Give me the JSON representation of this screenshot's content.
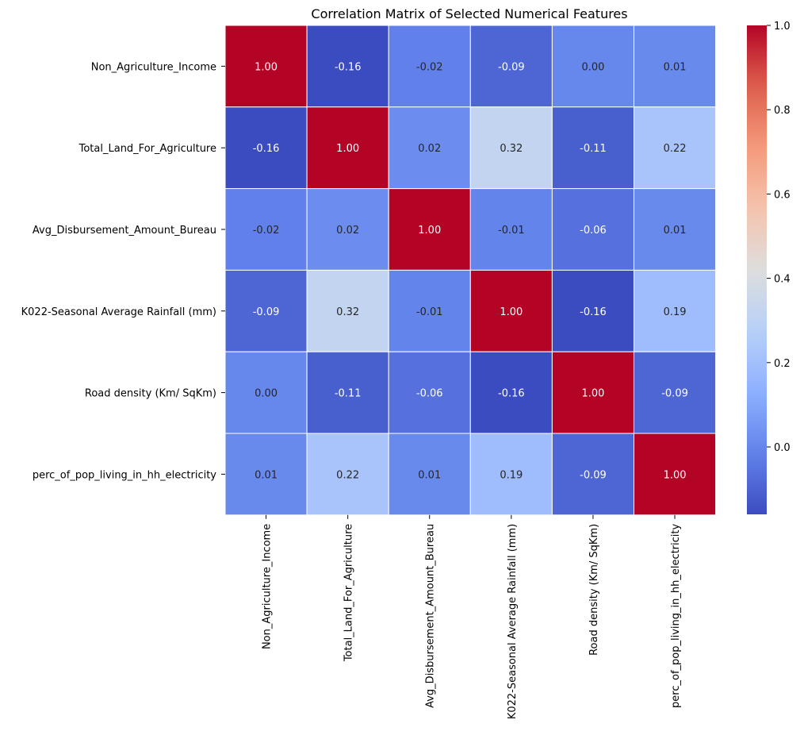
{
  "chart_data": {
    "type": "heatmap",
    "title": "Correlation Matrix of Selected Numerical Features",
    "labels": [
      "Non_Agriculture_Income",
      "Total_Land_For_Agriculture",
      "Avg_Disbursement_Amount_Bureau",
      "K022-Seasonal Average Rainfall (mm)",
      "Road density (Km/ SqKm)",
      "perc_of_pop_living_in_hh_electricity"
    ],
    "values": [
      [
        1.0,
        -0.16,
        -0.02,
        -0.09,
        0.0,
        0.01
      ],
      [
        -0.16,
        1.0,
        0.02,
        0.32,
        -0.11,
        0.22
      ],
      [
        -0.02,
        0.02,
        1.0,
        -0.01,
        -0.06,
        0.01
      ],
      [
        -0.09,
        0.32,
        -0.01,
        1.0,
        -0.16,
        0.19
      ],
      [
        0.0,
        -0.11,
        -0.06,
        -0.16,
        1.0,
        -0.09
      ],
      [
        0.01,
        0.22,
        0.01,
        0.19,
        -0.09,
        1.0
      ]
    ],
    "colormap": "coolwarm",
    "colorbar": {
      "min": -0.16,
      "max": 1.0,
      "ticks": [
        0.0,
        0.2,
        0.4,
        0.6,
        0.8,
        1.0
      ],
      "tick_labels": [
        "0.0",
        "0.2",
        "0.4",
        "0.6",
        "0.8",
        "1.0"
      ]
    },
    "annotation_format": "2 decimals",
    "cell_border_color": "#ffffff",
    "text_colors": {
      "dark_cells": "#ffffff",
      "light_cells": "#262626"
    }
  }
}
